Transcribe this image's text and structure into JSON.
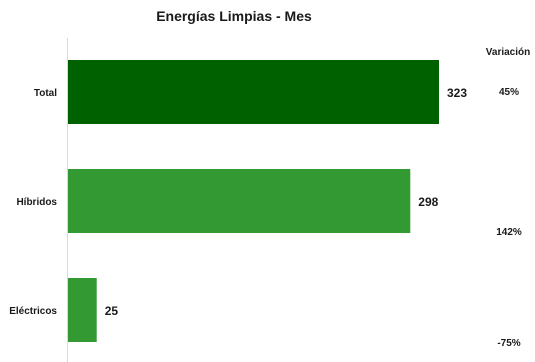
{
  "chart_data": {
    "type": "bar",
    "orientation": "horizontal",
    "title": "Energías  Limpias - Mes",
    "categories": [
      "Total",
      "Híbridos",
      "Eléctricos"
    ],
    "values": [
      323,
      298,
      25
    ],
    "value_labels": [
      "323",
      "298",
      "25"
    ],
    "colors": [
      "#006100",
      "#339933",
      "#339933"
    ],
    "variation_header": "Variación",
    "variations": [
      "45%",
      "142%",
      "-75%"
    ],
    "xlim": [
      0,
      323
    ],
    "grid": false,
    "legend": "none"
  }
}
